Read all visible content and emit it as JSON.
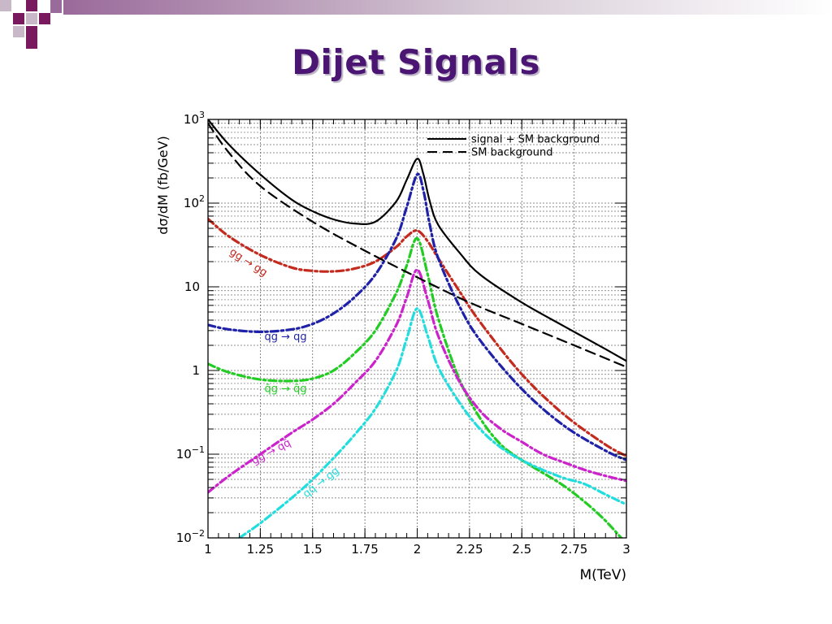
{
  "slide": {
    "title": "Dijet Signals",
    "colors": {
      "title": "#4b1573",
      "accent_dark": "#7a1a5e",
      "accent_mid": "#9a6a9a",
      "accent_light": "#c8b8c8"
    }
  },
  "chart_data": {
    "type": "line",
    "title": "",
    "xlabel": "M(TeV)",
    "ylabel": "dσ/dM (fb/GeV)",
    "xlim": [
      1,
      3
    ],
    "ylim": [
      0.01,
      1000
    ],
    "yscale": "log",
    "grid": true,
    "legend_position": "top-right",
    "x_ticks": [
      {
        "value": 1,
        "label": "1"
      },
      {
        "value": 1.25,
        "label": "1.25"
      },
      {
        "value": 1.5,
        "label": "1.5"
      },
      {
        "value": 1.75,
        "label": "1.75"
      },
      {
        "value": 2,
        "label": "2"
      },
      {
        "value": 2.25,
        "label": "2.25"
      },
      {
        "value": 2.5,
        "label": "2.5"
      },
      {
        "value": 2.75,
        "label": "2.75"
      },
      {
        "value": 3,
        "label": "3"
      }
    ],
    "y_ticks": [
      {
        "value": 1000,
        "label": "10",
        "exp": "3"
      },
      {
        "value": 100,
        "label": "10",
        "exp": "2"
      },
      {
        "value": 10,
        "label": "10",
        "exp": ""
      },
      {
        "value": 1,
        "label": "1",
        "exp": ""
      },
      {
        "value": 0.1,
        "label": "10",
        "exp": "−1"
      },
      {
        "value": 0.01,
        "label": "10",
        "exp": "−2"
      }
    ],
    "legend": [
      {
        "label": "signal + SM background",
        "series": "total"
      },
      {
        "label": "SM background",
        "series": "background"
      }
    ],
    "series": [
      {
        "id": "total",
        "name": "signal + SM background",
        "color": "#000000",
        "dash": "solid",
        "x": [
          1.0,
          1.1,
          1.25,
          1.4,
          1.5,
          1.6,
          1.7,
          1.8,
          1.9,
          1.95,
          2.0,
          2.03,
          2.06,
          2.1,
          2.2,
          2.3,
          2.5,
          2.7,
          2.9,
          3.0
        ],
        "y": [
          1000,
          500,
          220,
          110,
          80,
          64,
          57,
          60,
          105,
          190,
          340,
          220,
          105,
          55,
          26,
          14,
          6.5,
          3.4,
          1.8,
          1.3
        ]
      },
      {
        "id": "background",
        "name": "SM background",
        "color": "#000000",
        "dash": "dashed",
        "x": [
          1.0,
          1.1,
          1.25,
          1.5,
          1.75,
          2.0,
          2.25,
          2.5,
          2.75,
          3.0
        ],
        "y": [
          900,
          400,
          160,
          60,
          27,
          13,
          6.5,
          3.6,
          2.0,
          1.1
        ]
      },
      {
        "id": "gg",
        "name": "gg → gg",
        "color": "#c42a1e",
        "dash": "dashdot",
        "x": [
          1.0,
          1.1,
          1.25,
          1.4,
          1.5,
          1.6,
          1.7,
          1.8,
          1.9,
          1.95,
          2.0,
          2.05,
          2.1,
          2.2,
          2.3,
          2.5,
          2.7,
          2.9,
          3.0
        ],
        "y": [
          65,
          40,
          24,
          17,
          15.5,
          15.3,
          16.5,
          20,
          30,
          40,
          47,
          35,
          22,
          9,
          3.8,
          0.9,
          0.3,
          0.13,
          0.095
        ]
      },
      {
        "id": "qg",
        "name": "qg → qg",
        "color": "#1f22a8",
        "dash": "dashdot",
        "x": [
          1.0,
          1.1,
          1.25,
          1.4,
          1.5,
          1.6,
          1.7,
          1.8,
          1.9,
          1.95,
          2.0,
          2.03,
          2.06,
          2.1,
          2.2,
          2.3,
          2.5,
          2.7,
          2.9,
          3.0
        ],
        "y": [
          3.5,
          3.1,
          2.9,
          3.1,
          3.6,
          4.8,
          7.5,
          14,
          38,
          90,
          220,
          140,
          55,
          22,
          6,
          2.3,
          0.6,
          0.22,
          0.11,
          0.085
        ]
      },
      {
        "id": "qbarg",
        "name": "q̄g → q̄g",
        "color": "#22cc22",
        "dash": "dashdot",
        "x": [
          1.0,
          1.1,
          1.25,
          1.4,
          1.5,
          1.6,
          1.7,
          1.8,
          1.9,
          1.95,
          2.0,
          2.05,
          2.1,
          2.2,
          2.3,
          2.4,
          2.5,
          2.6,
          2.7,
          2.8,
          2.9,
          3.0
        ],
        "y": [
          1.2,
          0.95,
          0.78,
          0.75,
          0.8,
          1.0,
          1.6,
          3.0,
          8.5,
          18,
          38,
          14,
          4.2,
          0.8,
          0.27,
          0.13,
          0.085,
          0.06,
          0.042,
          0.027,
          0.016,
          0.0085
        ]
      },
      {
        "id": "gqqbar",
        "name": "gg → qq̄",
        "color": "#cc22cc",
        "dash": "dashdot",
        "x": [
          1.0,
          1.1,
          1.25,
          1.4,
          1.5,
          1.6,
          1.7,
          1.8,
          1.9,
          1.95,
          2.0,
          2.05,
          2.1,
          2.2,
          2.3,
          2.4,
          2.5,
          2.6,
          2.7,
          2.8,
          2.9,
          3.0
        ],
        "y": [
          0.035,
          0.055,
          0.1,
          0.18,
          0.26,
          0.4,
          0.7,
          1.3,
          3.5,
          7.5,
          16,
          7,
          2.6,
          0.75,
          0.33,
          0.2,
          0.14,
          0.1,
          0.08,
          0.065,
          0.055,
          0.048
        ]
      },
      {
        "id": "qqbar",
        "name": "qq̄ → gg",
        "color": "#22dddd",
        "dash": "dashdot",
        "x": [
          1.15,
          1.25,
          1.4,
          1.5,
          1.6,
          1.7,
          1.8,
          1.9,
          1.95,
          2.0,
          2.05,
          2.1,
          2.2,
          2.3,
          2.4,
          2.5,
          2.6,
          2.7,
          2.8,
          2.9,
          3.0
        ],
        "y": [
          0.01,
          0.015,
          0.03,
          0.05,
          0.09,
          0.17,
          0.35,
          1.0,
          2.4,
          5.5,
          2.6,
          1.1,
          0.42,
          0.2,
          0.12,
          0.085,
          0.065,
          0.052,
          0.044,
          0.033,
          0.025
        ]
      }
    ],
    "annotations": [
      {
        "text": "gg → gg",
        "series": "gg",
        "x": 1.1,
        "y": 25,
        "angle": 33
      },
      {
        "text": "qg → qg",
        "series": "qg",
        "x": 1.27,
        "y": 2.3,
        "angle": 0
      },
      {
        "text": "q̄g → q̄g",
        "series": "qbarg",
        "x": 1.27,
        "y": 0.55,
        "angle": 0
      },
      {
        "text": "gg → qq̄",
        "series": "gqqbar",
        "x": 1.22,
        "y": 0.075,
        "angle": -28
      },
      {
        "text": "qq̄ → gg",
        "series": "qqbar",
        "x": 1.47,
        "y": 0.03,
        "angle": -38
      }
    ]
  }
}
